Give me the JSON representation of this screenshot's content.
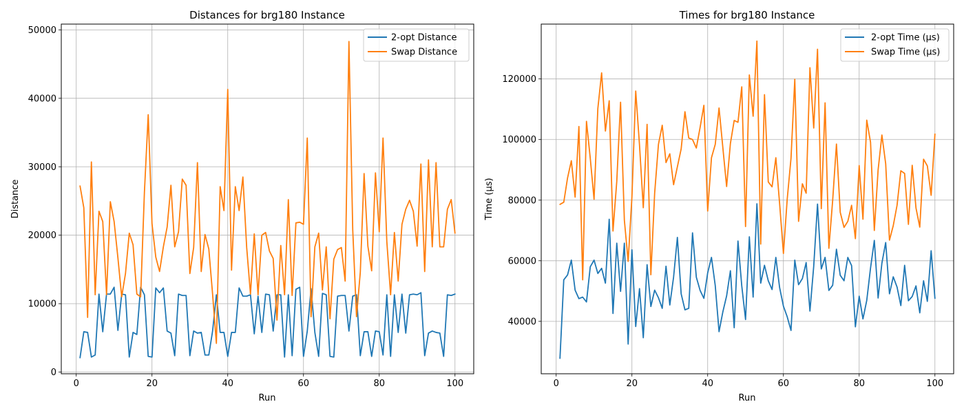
{
  "chart_data": [
    {
      "type": "line",
      "title": "Distances for brg180 Instance",
      "xlabel": "Run",
      "ylabel": "Distance",
      "xlim": [
        -3.95,
        104.95
      ],
      "ylim": [
        -240,
        50840
      ],
      "xticks": [
        0,
        20,
        40,
        60,
        80,
        100
      ],
      "yticks": [
        0,
        10000,
        20000,
        30000,
        40000,
        50000
      ],
      "grid": true,
      "legend_position": "top-right",
      "series": [
        {
          "name": "2-opt Distance",
          "color": "#1f77b4",
          "x_start": 1,
          "values": [
            2100,
            5900,
            5800,
            2200,
            2500,
            11400,
            5900,
            11400,
            11400,
            12400,
            6100,
            11400,
            11300,
            2200,
            5800,
            5500,
            12400,
            11300,
            2300,
            2200,
            12300,
            11600,
            12300,
            6000,
            5700,
            2400,
            11400,
            11200,
            11200,
            2400,
            6000,
            5700,
            5800,
            2500,
            2500,
            6000,
            11300,
            5800,
            5800,
            2300,
            5800,
            5800,
            12300,
            11100,
            11100,
            11300,
            5600,
            11100,
            5800,
            11400,
            11300,
            6000,
            11300,
            11300,
            2200,
            11300,
            2400,
            12100,
            12400,
            2300,
            6000,
            12200,
            5800,
            2300,
            11500,
            11300,
            2300,
            2200,
            11100,
            11200,
            11200,
            6000,
            11100,
            11300,
            2400,
            5900,
            5900,
            2300,
            6000,
            5900,
            2500,
            11300,
            2300,
            11300,
            5800,
            11400,
            5700,
            11300,
            11400,
            11300,
            11600,
            2400,
            5700,
            6000,
            5800,
            5700,
            2300,
            11300,
            11200,
            11400
          ]
        },
        {
          "name": "Swap Distance",
          "color": "#ff7f0e",
          "x_start": 1,
          "values": [
            27200,
            24000,
            8000,
            30700,
            11300,
            23500,
            22000,
            11300,
            24900,
            22000,
            16700,
            11000,
            14400,
            20300,
            18600,
            11400,
            11000,
            26300,
            37600,
            21700,
            16800,
            14700,
            18300,
            21200,
            27300,
            18300,
            20500,
            28200,
            27300,
            14400,
            18200,
            30600,
            14700,
            20100,
            18000,
            11400,
            4200,
            27100,
            23600,
            41300,
            14900,
            27100,
            23600,
            28500,
            18200,
            11400,
            20200,
            11300,
            20000,
            20400,
            17700,
            16600,
            7600,
            18500,
            11300,
            25200,
            11200,
            21800,
            21900,
            21600,
            34200,
            8100,
            18300,
            20300,
            12000,
            18300,
            7800,
            16500,
            17900,
            18200,
            13300,
            48300,
            20800,
            8100,
            14600,
            29000,
            18400,
            14800,
            29100,
            20500,
            34200,
            19100,
            11300,
            20400,
            13300,
            21600,
            23800,
            25100,
            23500,
            18400,
            30400,
            14700,
            31000,
            18300,
            30600,
            18300,
            18300,
            23800,
            25200,
            20300
          ]
        }
      ]
    },
    {
      "type": "line",
      "title": "Times for brg180 Instance",
      "xlabel": "Run",
      "ylabel": "Time (µs)",
      "xlim": [
        -3.95,
        104.95
      ],
      "ylim": [
        22700,
        138100
      ],
      "xticks": [
        0,
        20,
        40,
        60,
        80,
        100
      ],
      "yticks": [
        40000,
        60000,
        80000,
        100000,
        120000
      ],
      "grid": true,
      "legend_position": "top-right",
      "series": [
        {
          "name": "2-opt Time (µs)",
          "color": "#1f77b4",
          "x_start": 1,
          "values": [
            27800,
            53700,
            55300,
            60200,
            50300,
            47500,
            48000,
            46400,
            58000,
            60200,
            55800,
            57500,
            52600,
            73700,
            42600,
            65800,
            49900,
            65800,
            32500,
            63600,
            38300,
            50800,
            34600,
            58700,
            44900,
            50300,
            47800,
            44300,
            58200,
            45400,
            54600,
            67700,
            49100,
            43800,
            44300,
            69200,
            54600,
            50200,
            47600,
            56000,
            61100,
            51800,
            36600,
            43100,
            48400,
            56700,
            37900,
            66500,
            51700,
            40600,
            67900,
            48000,
            78800,
            52600,
            58500,
            53400,
            50500,
            61100,
            51100,
            45000,
            41500,
            37000,
            60200,
            52100,
            54100,
            59400,
            43400,
            58200,
            78700,
            57300,
            61100,
            50200,
            51900,
            63800,
            55200,
            53400,
            61100,
            58400,
            38200,
            48300,
            40800,
            46900,
            57600,
            66700,
            47700,
            59200,
            66000,
            49100,
            54700,
            51300,
            45200,
            58500,
            46800,
            48200,
            51700,
            42800,
            53400,
            46600,
            63300,
            47600
          ]
        },
        {
          "name": "Swap Time (µs)",
          "color": "#ff7f0e",
          "x_start": 1,
          "values": [
            78600,
            79300,
            87300,
            93000,
            81000,
            104300,
            53700,
            106000,
            93800,
            80300,
            110200,
            122000,
            102800,
            112800,
            69800,
            86200,
            112300,
            73400,
            59800,
            81100,
            116000,
            98200,
            77500,
            105000,
            55400,
            82300,
            98400,
            104700,
            92400,
            95300,
            85100,
            91000,
            96900,
            109200,
            100500,
            100000,
            97200,
            104000,
            111300,
            76400,
            94000,
            98400,
            110400,
            97400,
            84500,
            98700,
            106300,
            105700,
            117400,
            71300,
            121300,
            107700,
            132500,
            65500,
            114800,
            86000,
            84400,
            94000,
            78800,
            62400,
            80300,
            93800,
            119900,
            73000,
            85400,
            82300,
            123700,
            103800,
            129800,
            77200,
            112100,
            64100,
            79900,
            98500,
            76000,
            71000,
            73000,
            78300,
            67300,
            91400,
            73700,
            106400,
            99100,
            70000,
            90000,
            101500,
            92000,
            66800,
            71600,
            78300,
            89700,
            88800,
            72000,
            91500,
            77400,
            71100,
            93500,
            91300,
            81600,
            101800
          ]
        }
      ]
    }
  ]
}
